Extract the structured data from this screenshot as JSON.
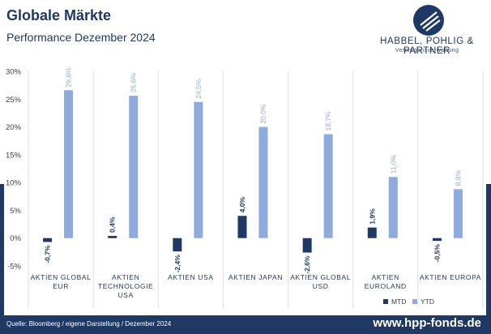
{
  "header": {
    "title": "Globale Märkte",
    "subtitle": "Performance Dezember 2024"
  },
  "logo": {
    "name": "HABBEL, POHLIG & PARTNER",
    "tagline": "Vermögensverwaltung",
    "icon": "hpp-logo-icon"
  },
  "footer": {
    "source": "Quelle: Bloomberg / eigene Darstellung / Dezember 2024",
    "url": "www.hpp-fonds.de"
  },
  "colors": {
    "mtd": "#1f3864",
    "ytd": "#8faadc",
    "brand": "#1f3864"
  },
  "chart_data": {
    "type": "bar",
    "categories": [
      [
        "AKTIEN GLOBAL",
        "EUR"
      ],
      [
        "AKTIEN",
        "TECHNOLOGIE",
        "USA"
      ],
      [
        "AKTIEN USA"
      ],
      [
        "AKTIEN JAPAN"
      ],
      [
        "AKTIEN GLOBAL",
        "USD"
      ],
      [
        "AKTIEN",
        "EUROLAND"
      ],
      [
        "AKTIEN EUROPA"
      ]
    ],
    "series": [
      {
        "name": "MTD",
        "values": [
          -0.7,
          0.4,
          -2.4,
          4.0,
          -2.6,
          1.9,
          -0.5
        ],
        "labels": [
          "-0,7%",
          "0,4%",
          "-2,4%",
          "4,0%",
          "-2,6%",
          "1,9%",
          "-0,5%"
        ]
      },
      {
        "name": "YTD",
        "values": [
          26.6,
          25.6,
          24.5,
          20.0,
          18.7,
          11.0,
          8.8
        ],
        "labels": [
          "26,6%",
          "25,6%",
          "24,5%",
          "20,0%",
          "18,7%",
          "11,0%",
          "8,8%"
        ]
      }
    ],
    "yticks": [
      30,
      25,
      20,
      15,
      10,
      5,
      0,
      -5
    ],
    "ytick_labels": [
      "30%",
      "25%",
      "20%",
      "15%",
      "10%",
      "5%",
      "0%",
      "-5%"
    ],
    "ylim": [
      -5,
      30
    ],
    "grid": "vertical separators between categories",
    "legend": "bottom-right"
  }
}
